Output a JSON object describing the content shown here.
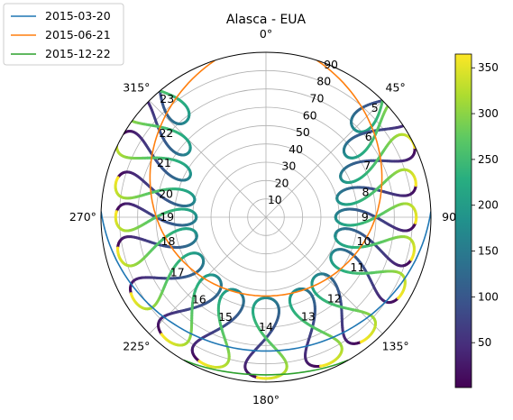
{
  "chart_data": {
    "type": "polar-line",
    "title": "Alasca - EUA",
    "theta_ticks": [
      "0°",
      "45°",
      "90",
      "135°",
      "180°",
      "225°",
      "270°",
      "315°"
    ],
    "theta_tick_angles": [
      0,
      45,
      90,
      135,
      180,
      225,
      270,
      315
    ],
    "r_ticks": [
      "10",
      "20",
      "30",
      "40",
      "50",
      "60",
      "70",
      "80",
      "90"
    ],
    "r_tick_values": [
      10,
      20,
      30,
      40,
      50,
      60,
      70,
      80,
      90
    ],
    "rlim": [
      0,
      90
    ],
    "theta_direction": "clockwise",
    "theta_zero": "top",
    "grid": true,
    "legend_position": "top-left",
    "series": [
      {
        "name": "2015-03-20",
        "color": "#1f77b4",
        "note_azimuth_range": [
          88,
          272
        ],
        "max_zenith": 73,
        "min_zenith": 90
      },
      {
        "name": "2015-06-21",
        "color": "#ff7f0e",
        "note_azimuth_range": [
          18,
          342
        ],
        "max_zenith": 43,
        "min_zenith": 90
      },
      {
        "name": "2015-12-22",
        "color": "#2ca02c",
        "note_azimuth_range": [
          150,
          210
        ],
        "max_zenith": 86,
        "min_zenith": 90
      }
    ],
    "analemma_hours": [
      "5",
      "6",
      "7",
      "8",
      "9",
      "10",
      "11",
      "12",
      "13",
      "14",
      "15",
      "16",
      "17",
      "18",
      "19",
      "20",
      "21",
      "22",
      "23"
    ],
    "analemma_hour_azimuths": [
      45,
      52,
      63,
      76,
      90,
      104,
      119,
      140,
      157,
      180,
      202,
      219,
      238,
      256,
      270,
      283,
      298,
      310,
      320
    ],
    "analemma_hour_zeniths": [
      90,
      77,
      68,
      62,
      60,
      61,
      63,
      64,
      65,
      66,
      65,
      64,
      63,
      61,
      60,
      62,
      69,
      77,
      90
    ],
    "colorbar": {
      "ticks": [
        "50",
        "100",
        "150",
        "200",
        "250",
        "300",
        "350"
      ],
      "tick_values": [
        50,
        100,
        150,
        200,
        250,
        300,
        350
      ],
      "range": [
        1,
        365
      ],
      "colormap": "viridis"
    }
  }
}
